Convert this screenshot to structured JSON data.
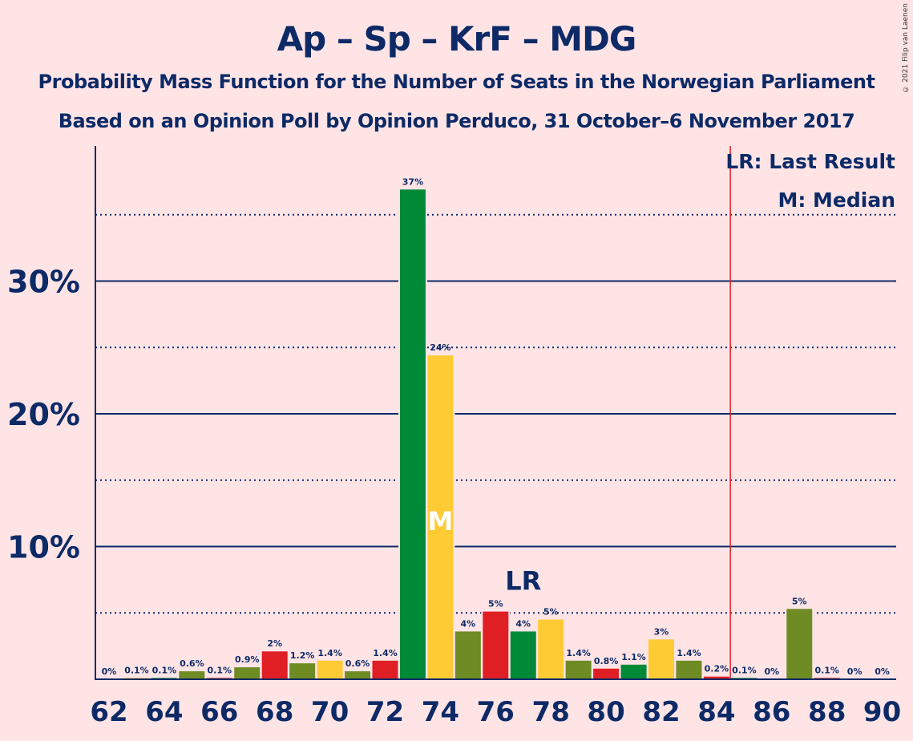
{
  "title": "Ap – Sp – KrF – MDG",
  "subtitle1": "Probability Mass Function for the Number of Seats in the Norwegian Parliament",
  "subtitle2": "Based on an Opinion Poll by Opinion Perduco, 31 October–6 November 2017",
  "copyright": "© 2021 Filip van Laenen",
  "legend": {
    "lr": "LR: Last Result",
    "m": "M: Median"
  },
  "colors": {
    "ap_green": "#008a38",
    "sp_olive": "#6e8b24",
    "krf_yellow": "#ffcb34",
    "red": "#e01f25",
    "axis": "#0d2a66",
    "majority_line": "#e01f25"
  },
  "chart_data": {
    "type": "bar",
    "x": [
      62,
      63,
      64,
      65,
      66,
      67,
      68,
      69,
      70,
      71,
      72,
      73,
      74,
      75,
      76,
      77,
      78,
      79,
      80,
      81,
      82,
      83,
      84,
      85,
      86,
      87,
      88,
      89,
      90
    ],
    "values": [
      0,
      0.1,
      0.1,
      0.6,
      0.1,
      0.9,
      2.1,
      1.2,
      1.4,
      0.6,
      1.4,
      36.9,
      24.4,
      3.6,
      5.1,
      3.6,
      4.5,
      1.4,
      0.8,
      1.1,
      3.0,
      1.4,
      0.2,
      0.1,
      0,
      5.3,
      0.1,
      0,
      0
    ],
    "labels": [
      "0%",
      "0.1%",
      "0.1%",
      "0.6%",
      "0.1%",
      "0.9%",
      "2%",
      "1.2%",
      "1.4%",
      "0.6%",
      "1.4%",
      "37%",
      "24%",
      "4%",
      "5%",
      "4%",
      "5%",
      "1.4%",
      "0.8%",
      "1.1%",
      "3%",
      "1.4%",
      "0.2%",
      "0.1%",
      "0%",
      "5%",
      "0.1%",
      "0%",
      "0%"
    ],
    "bar_colors": [
      "olive",
      "yellow",
      "green",
      "olive",
      "red",
      "olive",
      "red",
      "olive",
      "yellow",
      "olive",
      "red",
      "green",
      "yellow",
      "olive",
      "red",
      "green",
      "yellow",
      "olive",
      "red",
      "green",
      "yellow",
      "olive",
      "red",
      "green",
      "yellow",
      "olive",
      "red",
      "green",
      "yellow"
    ],
    "x_ticks": [
      "62",
      "64",
      "66",
      "68",
      "70",
      "72",
      "74",
      "76",
      "78",
      "80",
      "82",
      "84",
      "86",
      "88",
      "90"
    ],
    "y_ticks": [
      "10%",
      "20%",
      "30%"
    ],
    "ylim": [
      0,
      40
    ],
    "major_gridlines": [
      10,
      20,
      30
    ],
    "minor_gridlines": [
      5,
      15,
      25,
      35
    ],
    "median_seat": 74,
    "median_marker": "M",
    "last_result_seat": 77,
    "last_result_marker": "LR",
    "majority_after_seat": 84
  }
}
